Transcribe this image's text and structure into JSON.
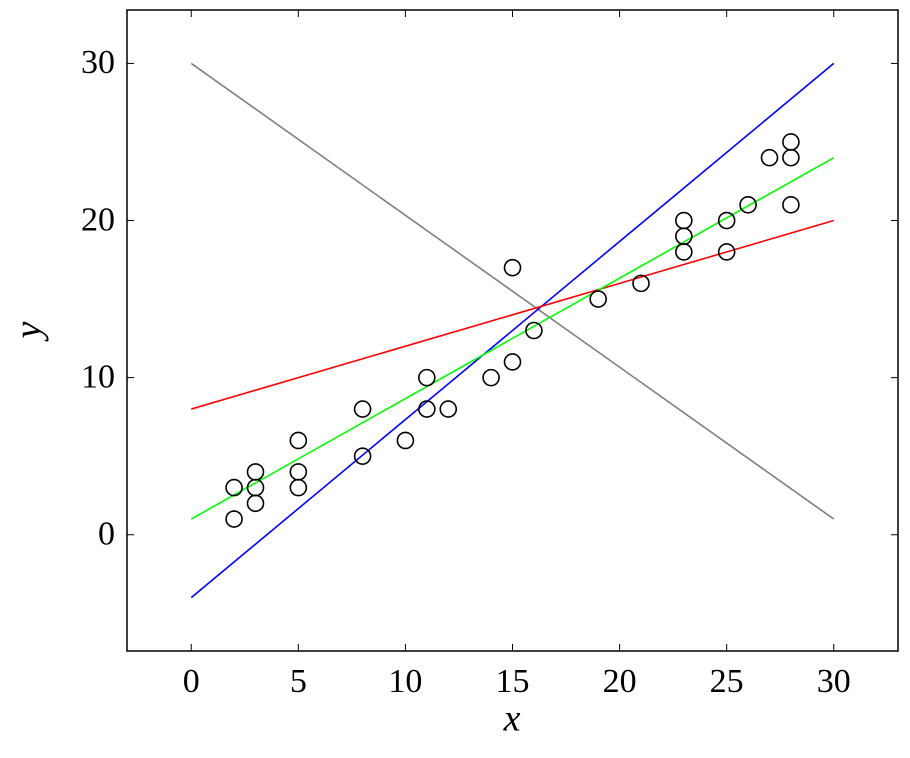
{
  "chart_data": {
    "type": "scatter",
    "xlabel": "x",
    "ylabel": "y",
    "x": [
      2,
      2,
      3,
      3,
      3,
      5,
      5,
      5,
      8,
      8,
      10,
      11,
      11,
      12,
      14,
      15,
      15,
      16,
      19,
      21,
      23,
      23,
      23,
      25,
      25,
      26,
      27,
      28,
      28,
      28
    ],
    "values": [
      3,
      1,
      4,
      3,
      2,
      6,
      4,
      3,
      8,
      5,
      6,
      10,
      8,
      8,
      10,
      17,
      11,
      13,
      15,
      16,
      20,
      19,
      18,
      20,
      18,
      21,
      24,
      25,
      24,
      21
    ],
    "color": "#000000",
    "lines": [
      {
        "color": "#808080",
        "x": [
          0,
          30
        ],
        "values": [
          30,
          1
        ]
      },
      {
        "color": "#0000ff",
        "x": [
          0,
          30
        ],
        "values": [
          -4,
          30
        ]
      },
      {
        "color": "#ff0000",
        "x": [
          0,
          30
        ],
        "values": [
          8,
          20
        ]
      },
      {
        "color": "#00ff00",
        "x": [
          0,
          30
        ],
        "values": [
          1,
          24
        ]
      }
    ],
    "xlim": [
      -3,
      33
    ],
    "ylim": [
      -7.4,
      33.4
    ],
    "xticks": [
      0,
      5,
      10,
      15,
      20,
      25,
      30
    ],
    "yticks": [
      0,
      10,
      20,
      30
    ],
    "grid": false
  }
}
